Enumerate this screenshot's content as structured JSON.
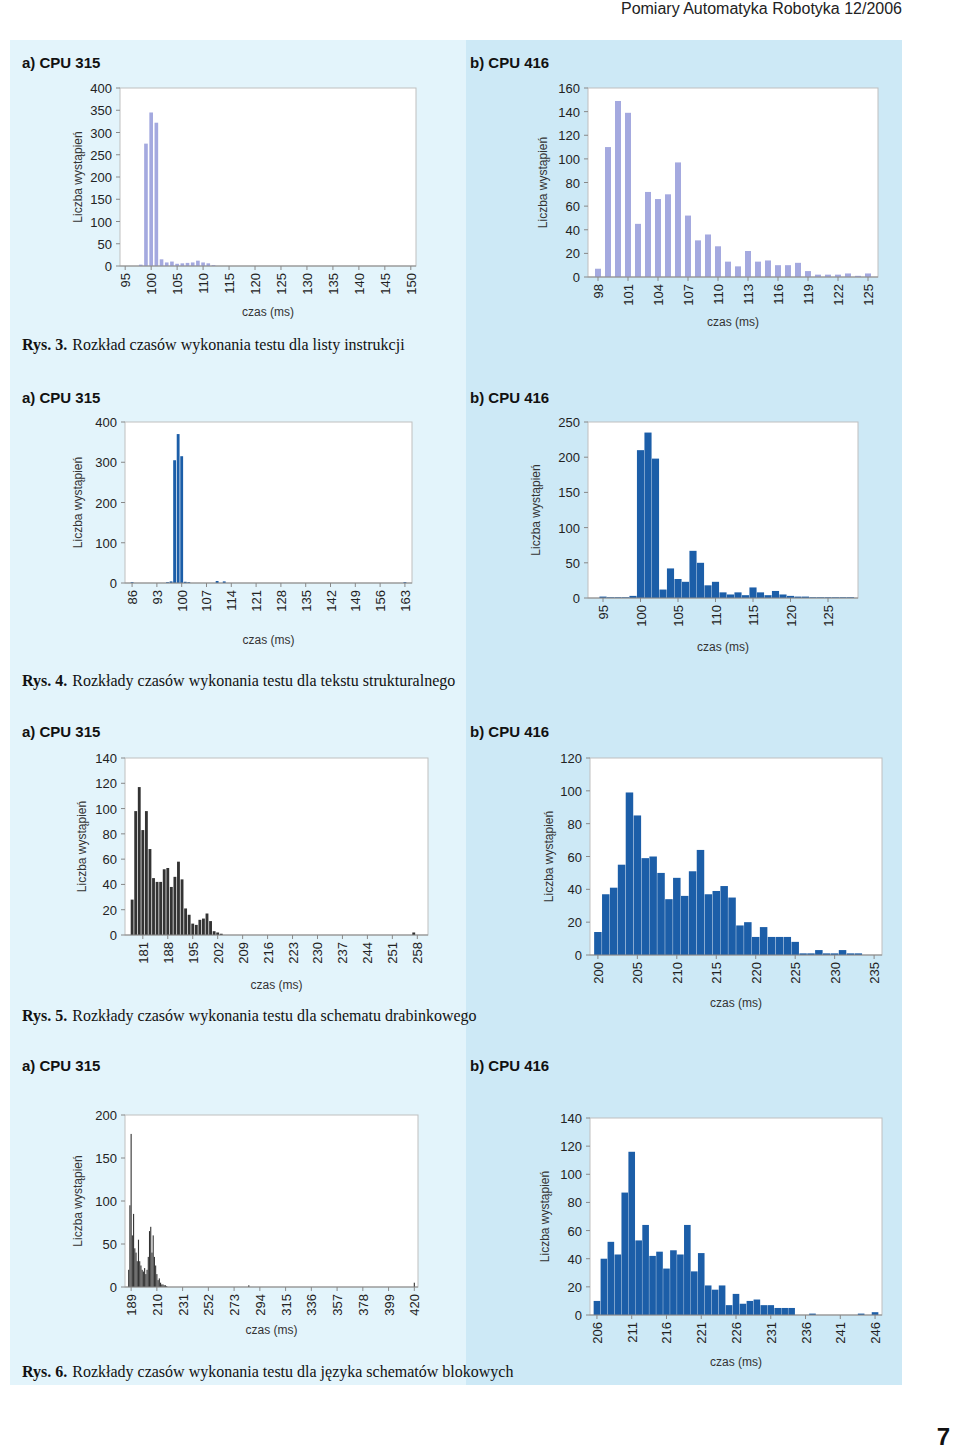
{
  "header": {
    "journal": "Pomiary Automatyka Robotyka 12/2006"
  },
  "page_number": 7,
  "figures": [
    {
      "label": "Rys. 3.",
      "text": "Rozkład czasów wykonania testu dla listy instrukcji"
    },
    {
      "label": "Rys. 4.",
      "text": "Rozkłady czasów wykonania testu dla tekstu strukturalnego"
    },
    {
      "label": "Rys. 5.",
      "text": "Rozkłady czasów wykonania testu dla schematu drabinkowego"
    },
    {
      "label": "Rys. 6.",
      "text": "Rozkłady czasów wykonania testu dla języka schematów blokowych"
    }
  ],
  "chart_data": [
    {
      "type": "bar",
      "title": "a) CPU 315",
      "x_label": "czas (ms)",
      "y_label": "Liczba wystąpień",
      "x": [
        98,
        99,
        100,
        101,
        102,
        103,
        104,
        105,
        106,
        107,
        108,
        109,
        110,
        111,
        112
      ],
      "values": [
        3,
        275,
        345,
        322,
        15,
        8,
        10,
        5,
        6,
        7,
        8,
        12,
        8,
        6,
        2
      ],
      "color": "#a4a9df",
      "xlim": [
        94,
        151
      ],
      "ylim": [
        0,
        400
      ],
      "xticks": [
        95,
        100,
        105,
        110,
        115,
        120,
        125,
        130,
        135,
        140,
        145,
        150
      ],
      "yticks": [
        0,
        50,
        100,
        150,
        200,
        250,
        300,
        350,
        400
      ],
      "grid": false
    },
    {
      "type": "bar",
      "title": "b) CPU 416",
      "x_label": "czas (ms)",
      "y_label": "Liczba wystąpień",
      "x": [
        98,
        99,
        100,
        101,
        102,
        103,
        104,
        105,
        106,
        107,
        108,
        109,
        110,
        111,
        112,
        113,
        114,
        115,
        116,
        117,
        118,
        119,
        120,
        121,
        122,
        123,
        124,
        125
      ],
      "values": [
        7,
        110,
        149,
        139,
        45,
        72,
        66,
        70,
        97,
        52,
        31,
        36,
        26,
        13,
        9,
        22,
        13,
        14,
        10,
        10,
        12,
        5,
        2,
        2,
        2,
        3,
        1,
        3
      ],
      "color": "#a4a9df",
      "xlim": [
        97,
        126
      ],
      "ylim": [
        0,
        160
      ],
      "xticks": [
        98,
        101,
        104,
        107,
        110,
        113,
        116,
        119,
        122,
        125
      ],
      "yticks": [
        0,
        20,
        40,
        60,
        80,
        100,
        120,
        140,
        160
      ],
      "grid": false
    },
    {
      "type": "bar",
      "title": "a) CPU 315",
      "x_label": "czas (ms)",
      "y_label": "Liczba wystąpień",
      "x": [
        86,
        96,
        97,
        98,
        99,
        100,
        101,
        102,
        110,
        112,
        163
      ],
      "values": [
        2,
        2,
        4,
        305,
        370,
        315,
        3,
        2,
        5,
        4,
        2
      ],
      "color": "#1c5ea8",
      "xlim": [
        84,
        165
      ],
      "ylim": [
        0,
        400
      ],
      "xticks": [
        86,
        93,
        100,
        107,
        114,
        121,
        128,
        135,
        142,
        149,
        156,
        163
      ],
      "yticks": [
        0,
        100,
        200,
        300,
        400
      ],
      "grid": false
    },
    {
      "type": "bar",
      "title": "b) CPU 416",
      "x_label": "czas (ms)",
      "y_label": "Liczba wystąpień",
      "x": [
        95,
        96,
        97,
        98,
        99,
        100,
        101,
        102,
        103,
        104,
        105,
        106,
        107,
        108,
        109,
        110,
        111,
        112,
        113,
        114,
        115,
        116,
        117,
        118,
        119,
        120,
        121,
        122,
        123,
        124,
        125,
        126,
        127,
        128
      ],
      "values": [
        2,
        1,
        1,
        1,
        3,
        210,
        235,
        198,
        12,
        42,
        27,
        23,
        67,
        50,
        18,
        23,
        8,
        5,
        8,
        4,
        15,
        8,
        4,
        10,
        5,
        3,
        2,
        2,
        1,
        1,
        1,
        1,
        1,
        1
      ],
      "color": "#1c5ea8",
      "xlim": [
        93,
        129
      ],
      "ylim": [
        0,
        250
      ],
      "xticks": [
        95,
        100,
        105,
        110,
        115,
        120,
        125
      ],
      "yticks": [
        0,
        50,
        100,
        150,
        200,
        250
      ],
      "grid": false
    },
    {
      "type": "bar",
      "title": "a) CPU 315",
      "x_label": "czas (ms)",
      "y_label": "Liczba wystąpień",
      "x": [
        178,
        179,
        180,
        181,
        182,
        183,
        184,
        185,
        186,
        187,
        188,
        189,
        190,
        191,
        192,
        193,
        194,
        195,
        196,
        197,
        198,
        199,
        200,
        201,
        202,
        203,
        257
      ],
      "values": [
        28,
        98,
        117,
        83,
        98,
        68,
        45,
        42,
        42,
        52,
        53,
        38,
        46,
        58,
        44,
        21,
        16,
        9,
        8,
        12,
        13,
        17,
        11,
        3,
        2,
        1,
        2
      ],
      "color": "#333333",
      "xlim": [
        176,
        261
      ],
      "ylim": [
        0,
        140
      ],
      "xticks": [
        181,
        188,
        195,
        202,
        209,
        216,
        223,
        230,
        237,
        244,
        251,
        258
      ],
      "yticks": [
        0,
        20,
        40,
        60,
        80,
        100,
        120,
        140
      ],
      "grid": false
    },
    {
      "type": "bar",
      "title": "b) CPU 416",
      "x_label": "czas (ms)",
      "y_label": "Liczba wystąpień",
      "x": [
        200,
        201,
        202,
        203,
        204,
        205,
        206,
        207,
        208,
        209,
        210,
        211,
        212,
        213,
        214,
        215,
        216,
        217,
        218,
        219,
        220,
        221,
        222,
        223,
        224,
        225,
        226,
        227,
        228,
        229,
        230,
        231,
        232,
        233
      ],
      "values": [
        14,
        37,
        41,
        55,
        99,
        85,
        59,
        60,
        50,
        34,
        47,
        36,
        51,
        64,
        37,
        39,
        42,
        35,
        18,
        20,
        11,
        17,
        11,
        11,
        11,
        8,
        1,
        1,
        3,
        1,
        1,
        3,
        1,
        1
      ],
      "color": "#1c5ea8",
      "xlim": [
        199,
        236
      ],
      "ylim": [
        0,
        120
      ],
      "xticks": [
        200,
        205,
        210,
        215,
        220,
        225,
        230,
        235
      ],
      "yticks": [
        0,
        20,
        40,
        60,
        80,
        100,
        120
      ],
      "grid": false
    },
    {
      "type": "bar",
      "title": "a) CPU 315",
      "x_label": "czas (ms)",
      "y_label": "Liczba wystąpień",
      "x": [
        187,
        188,
        189,
        190,
        191,
        192,
        193,
        194,
        195,
        196,
        197,
        198,
        199,
        200,
        201,
        202,
        203,
        204,
        205,
        206,
        207,
        208,
        209,
        210,
        211,
        212,
        213,
        214,
        215,
        216,
        217,
        218,
        285,
        420
      ],
      "values": [
        20,
        95,
        178,
        60,
        85,
        45,
        40,
        30,
        55,
        30,
        25,
        20,
        18,
        22,
        15,
        20,
        35,
        65,
        70,
        40,
        60,
        35,
        25,
        15,
        8,
        10,
        5,
        3,
        3,
        2,
        2,
        1,
        2,
        5
      ],
      "color": "#333333",
      "xlim": [
        184,
        423
      ],
      "ylim": [
        0,
        200
      ],
      "xticks": [
        189,
        210,
        231,
        252,
        273,
        294,
        315,
        336,
        357,
        378,
        399,
        420
      ],
      "yticks": [
        0,
        50,
        100,
        150,
        200
      ],
      "grid": false
    },
    {
      "type": "bar",
      "title": "b) CPU 416",
      "x_label": "czas (ms)",
      "y_label": "Liczba wystąpień",
      "x": [
        206,
        207,
        208,
        209,
        210,
        211,
        212,
        213,
        214,
        215,
        216,
        217,
        218,
        219,
        220,
        221,
        222,
        223,
        224,
        225,
        226,
        227,
        228,
        229,
        230,
        231,
        232,
        233,
        234,
        237,
        244,
        246
      ],
      "values": [
        10,
        40,
        52,
        43,
        87,
        116,
        53,
        64,
        42,
        45,
        33,
        46,
        43,
        64,
        31,
        44,
        21,
        18,
        21,
        7,
        15,
        8,
        10,
        11,
        7,
        7,
        5,
        5,
        5,
        1,
        1,
        2
      ],
      "color": "#1c5ea8",
      "xlim": [
        205,
        247
      ],
      "ylim": [
        0,
        140
      ],
      "xticks": [
        206,
        211,
        216,
        221,
        226,
        231,
        236,
        241,
        246
      ],
      "yticks": [
        0,
        20,
        40,
        60,
        80,
        100,
        120,
        140
      ],
      "grid": false
    }
  ]
}
